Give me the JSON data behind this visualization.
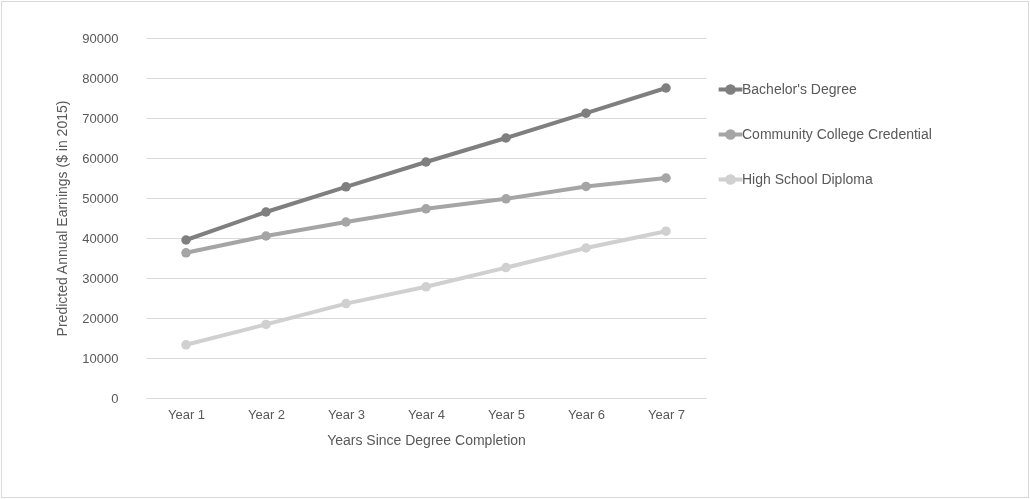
{
  "chart_data": {
    "type": "line",
    "xlabel": "Years Since Degree  Completion",
    "ylabel": "Predicted Annual Earnings ($ in 2015)",
    "categories": [
      "Year 1",
      "Year 2",
      "Year 3",
      "Year 4",
      "Year 5",
      "Year 6",
      "Year 7"
    ],
    "series": [
      {
        "name": "Bachelor's Degree",
        "color": "#7f7f7f",
        "values": [
          39500,
          46500,
          52800,
          59000,
          65000,
          71200,
          77500
        ]
      },
      {
        "name": "Community College Credential",
        "color": "#a5a5a5",
        "values": [
          36300,
          40500,
          44000,
          47300,
          49800,
          52900,
          55000
        ]
      },
      {
        "name": "High School Diploma",
        "color": "#d0d0d0",
        "values": [
          13300,
          18400,
          23600,
          27800,
          32600,
          37500,
          41700
        ]
      }
    ],
    "ylim": [
      0,
      90000
    ],
    "yticks": [
      0,
      10000,
      20000,
      30000,
      40000,
      50000,
      60000,
      70000,
      80000,
      90000
    ],
    "grid": "y",
    "legend": "right",
    "marker": "circle",
    "line_style": "solid"
  }
}
